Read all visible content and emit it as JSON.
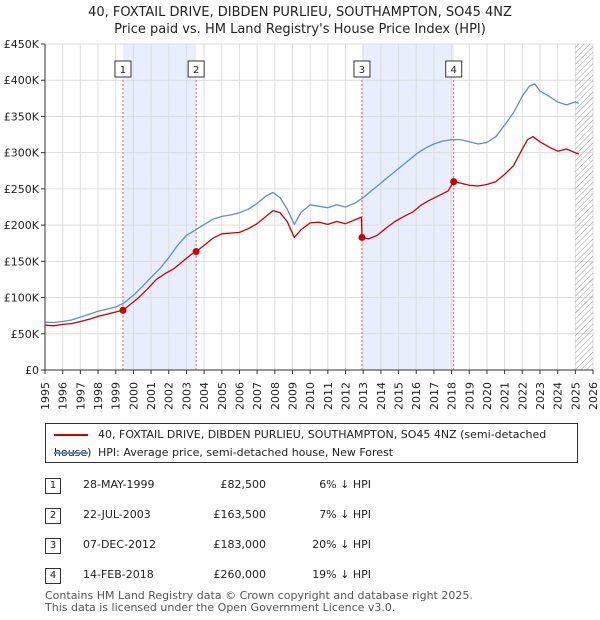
{
  "title_line1": "40, FOXTAIL DRIVE, DIBDEN PURLIEU, SOUTHAMPTON, SO45 4NZ",
  "title_line2": "Price paid vs. HM Land Registry's House Price Index (HPI)",
  "colors": {
    "property": "#cc0000",
    "hpi": "#5b8fd4",
    "shade": "#e8eefb",
    "grid": "#dddddd",
    "vline": "#e06666"
  },
  "chart_data": {
    "type": "line",
    "title": "40, FOXTAIL DRIVE, DIBDEN PURLIEU, SOUTHAMPTON, SO45 4NZ — Price paid vs. HM Land Registry's House Price Index (HPI)",
    "xlabel": "",
    "ylabel": "",
    "xlim": [
      1995,
      2026
    ],
    "ylim": [
      0,
      450000
    ],
    "y_ticks": [
      0,
      50000,
      100000,
      150000,
      200000,
      250000,
      300000,
      350000,
      400000,
      450000
    ],
    "y_tick_labels": [
      "£0",
      "£50K",
      "£100K",
      "£150K",
      "£200K",
      "£250K",
      "£300K",
      "£350K",
      "£400K",
      "£450K"
    ],
    "x_ticks": [
      1995,
      1996,
      1997,
      1998,
      1999,
      2000,
      2001,
      2002,
      2003,
      2004,
      2005,
      2006,
      2007,
      2008,
      2009,
      2010,
      2011,
      2012,
      2013,
      2014,
      2015,
      2016,
      2017,
      2018,
      2019,
      2020,
      2021,
      2022,
      2023,
      2024,
      2025,
      2026
    ],
    "shaded_ranges": [
      [
        1999.41,
        2003.55
      ],
      [
        2012.93,
        2018.12
      ]
    ],
    "hatched_from": 2025.0,
    "markers": [
      {
        "label": "1",
        "x": 1999.41,
        "y": 82500
      },
      {
        "label": "2",
        "x": 2003.55,
        "y": 163500
      },
      {
        "label": "3",
        "x": 2012.93,
        "y": 183000
      },
      {
        "label": "4",
        "x": 2018.12,
        "y": 260000
      }
    ],
    "series": [
      {
        "name": "40, FOXTAIL DRIVE, DIBDEN PURLIEU, SOUTHAMPTON, SO45 4NZ (semi-detached house)",
        "x": [
          1995.0,
          1995.5,
          1996.0,
          1996.5,
          1997.0,
          1997.5,
          1998.0,
          1998.5,
          1999.0,
          1999.41,
          1999.8,
          2000.3,
          2000.8,
          2001.3,
          2001.8,
          2002.3,
          2002.8,
          2003.3,
          2003.55,
          2004.0,
          2004.5,
          2005.0,
          2005.5,
          2006.0,
          2006.5,
          2007.0,
          2007.5,
          2007.9,
          2008.3,
          2008.7,
          2009.1,
          2009.5,
          2010.0,
          2010.5,
          2011.0,
          2011.5,
          2012.0,
          2012.5,
          2012.9,
          2012.93,
          2013.3,
          2013.8,
          2014.3,
          2014.8,
          2015.3,
          2015.8,
          2016.3,
          2016.8,
          2017.3,
          2017.8,
          2018.12,
          2018.5,
          2019.0,
          2019.5,
          2020.0,
          2020.5,
          2021.0,
          2021.5,
          2022.0,
          2022.3,
          2022.6,
          2023.0,
          2023.5,
          2024.0,
          2024.5,
          2025.0,
          2025.2
        ],
        "values": [
          62000,
          61000,
          63000,
          64000,
          67000,
          70000,
          74000,
          77000,
          80000,
          82500,
          90000,
          100000,
          112000,
          125000,
          133000,
          140000,
          150000,
          160000,
          163500,
          172000,
          182000,
          188000,
          189000,
          190000,
          195000,
          202000,
          212000,
          220000,
          217000,
          205000,
          183000,
          194000,
          203000,
          204000,
          201000,
          205000,
          202000,
          207000,
          211000,
          183000,
          181000,
          186000,
          196000,
          205000,
          212000,
          218000,
          228000,
          235000,
          241000,
          247000,
          260000,
          258000,
          255000,
          254000,
          256000,
          260000,
          270000,
          282000,
          305000,
          318000,
          322000,
          315000,
          308000,
          302000,
          305000,
          300000,
          298000
        ]
      },
      {
        "name": "HPI: Average price, semi-detached house, New Forest",
        "x": [
          1995.0,
          1995.5,
          1996.0,
          1996.5,
          1997.0,
          1997.5,
          1998.0,
          1998.5,
          1999.0,
          1999.5,
          2000.0,
          2000.5,
          2001.0,
          2001.5,
          2002.0,
          2002.5,
          2003.0,
          2003.5,
          2004.0,
          2004.5,
          2005.0,
          2005.5,
          2006.0,
          2006.5,
          2007.0,
          2007.5,
          2007.9,
          2008.3,
          2008.7,
          2009.1,
          2009.5,
          2010.0,
          2010.5,
          2011.0,
          2011.5,
          2012.0,
          2012.5,
          2013.0,
          2013.5,
          2014.0,
          2014.5,
          2015.0,
          2015.5,
          2016.0,
          2016.5,
          2017.0,
          2017.5,
          2018.0,
          2018.5,
          2019.0,
          2019.5,
          2020.0,
          2020.5,
          2021.0,
          2021.5,
          2022.0,
          2022.4,
          2022.7,
          2023.0,
          2023.5,
          2024.0,
          2024.5,
          2025.0,
          2025.2
        ],
        "values": [
          66000,
          65500,
          67000,
          69000,
          73000,
          77000,
          81000,
          84000,
          87000,
          93000,
          103000,
          115000,
          128000,
          140000,
          155000,
          172000,
          186000,
          193000,
          201000,
          208000,
          212000,
          214000,
          217000,
          222000,
          230000,
          240000,
          245000,
          238000,
          222000,
          201000,
          218000,
          228000,
          226000,
          224000,
          228000,
          225000,
          230000,
          238000,
          248000,
          258000,
          268000,
          278000,
          288000,
          298000,
          306000,
          312000,
          316000,
          318000,
          318000,
          315000,
          312000,
          314000,
          322000,
          338000,
          355000,
          378000,
          392000,
          395000,
          385000,
          378000,
          370000,
          366000,
          370000,
          368000
        ]
      }
    ]
  },
  "legend": {
    "property_label": "40, FOXTAIL DRIVE, DIBDEN PURLIEU, SOUTHAMPTON, SO45 4NZ (semi-detached house)",
    "hpi_label": "HPI: Average price, semi-detached house, New Forest"
  },
  "sales": [
    {
      "num": "1",
      "date": "28-MAY-1999",
      "price": "£82,500",
      "hpi": "6% ↓ HPI"
    },
    {
      "num": "2",
      "date": "22-JUL-2003",
      "price": "£163,500",
      "hpi": "7% ↓ HPI"
    },
    {
      "num": "3",
      "date": "07-DEC-2012",
      "price": "£183,000",
      "hpi": "20% ↓ HPI"
    },
    {
      "num": "4",
      "date": "14-FEB-2018",
      "price": "£260,000",
      "hpi": "19% ↓ HPI"
    }
  ],
  "footer_line1": "Contains HM Land Registry data © Crown copyright and database right 2025.",
  "footer_line2": "This data is licensed under the Open Government Licence v3.0."
}
